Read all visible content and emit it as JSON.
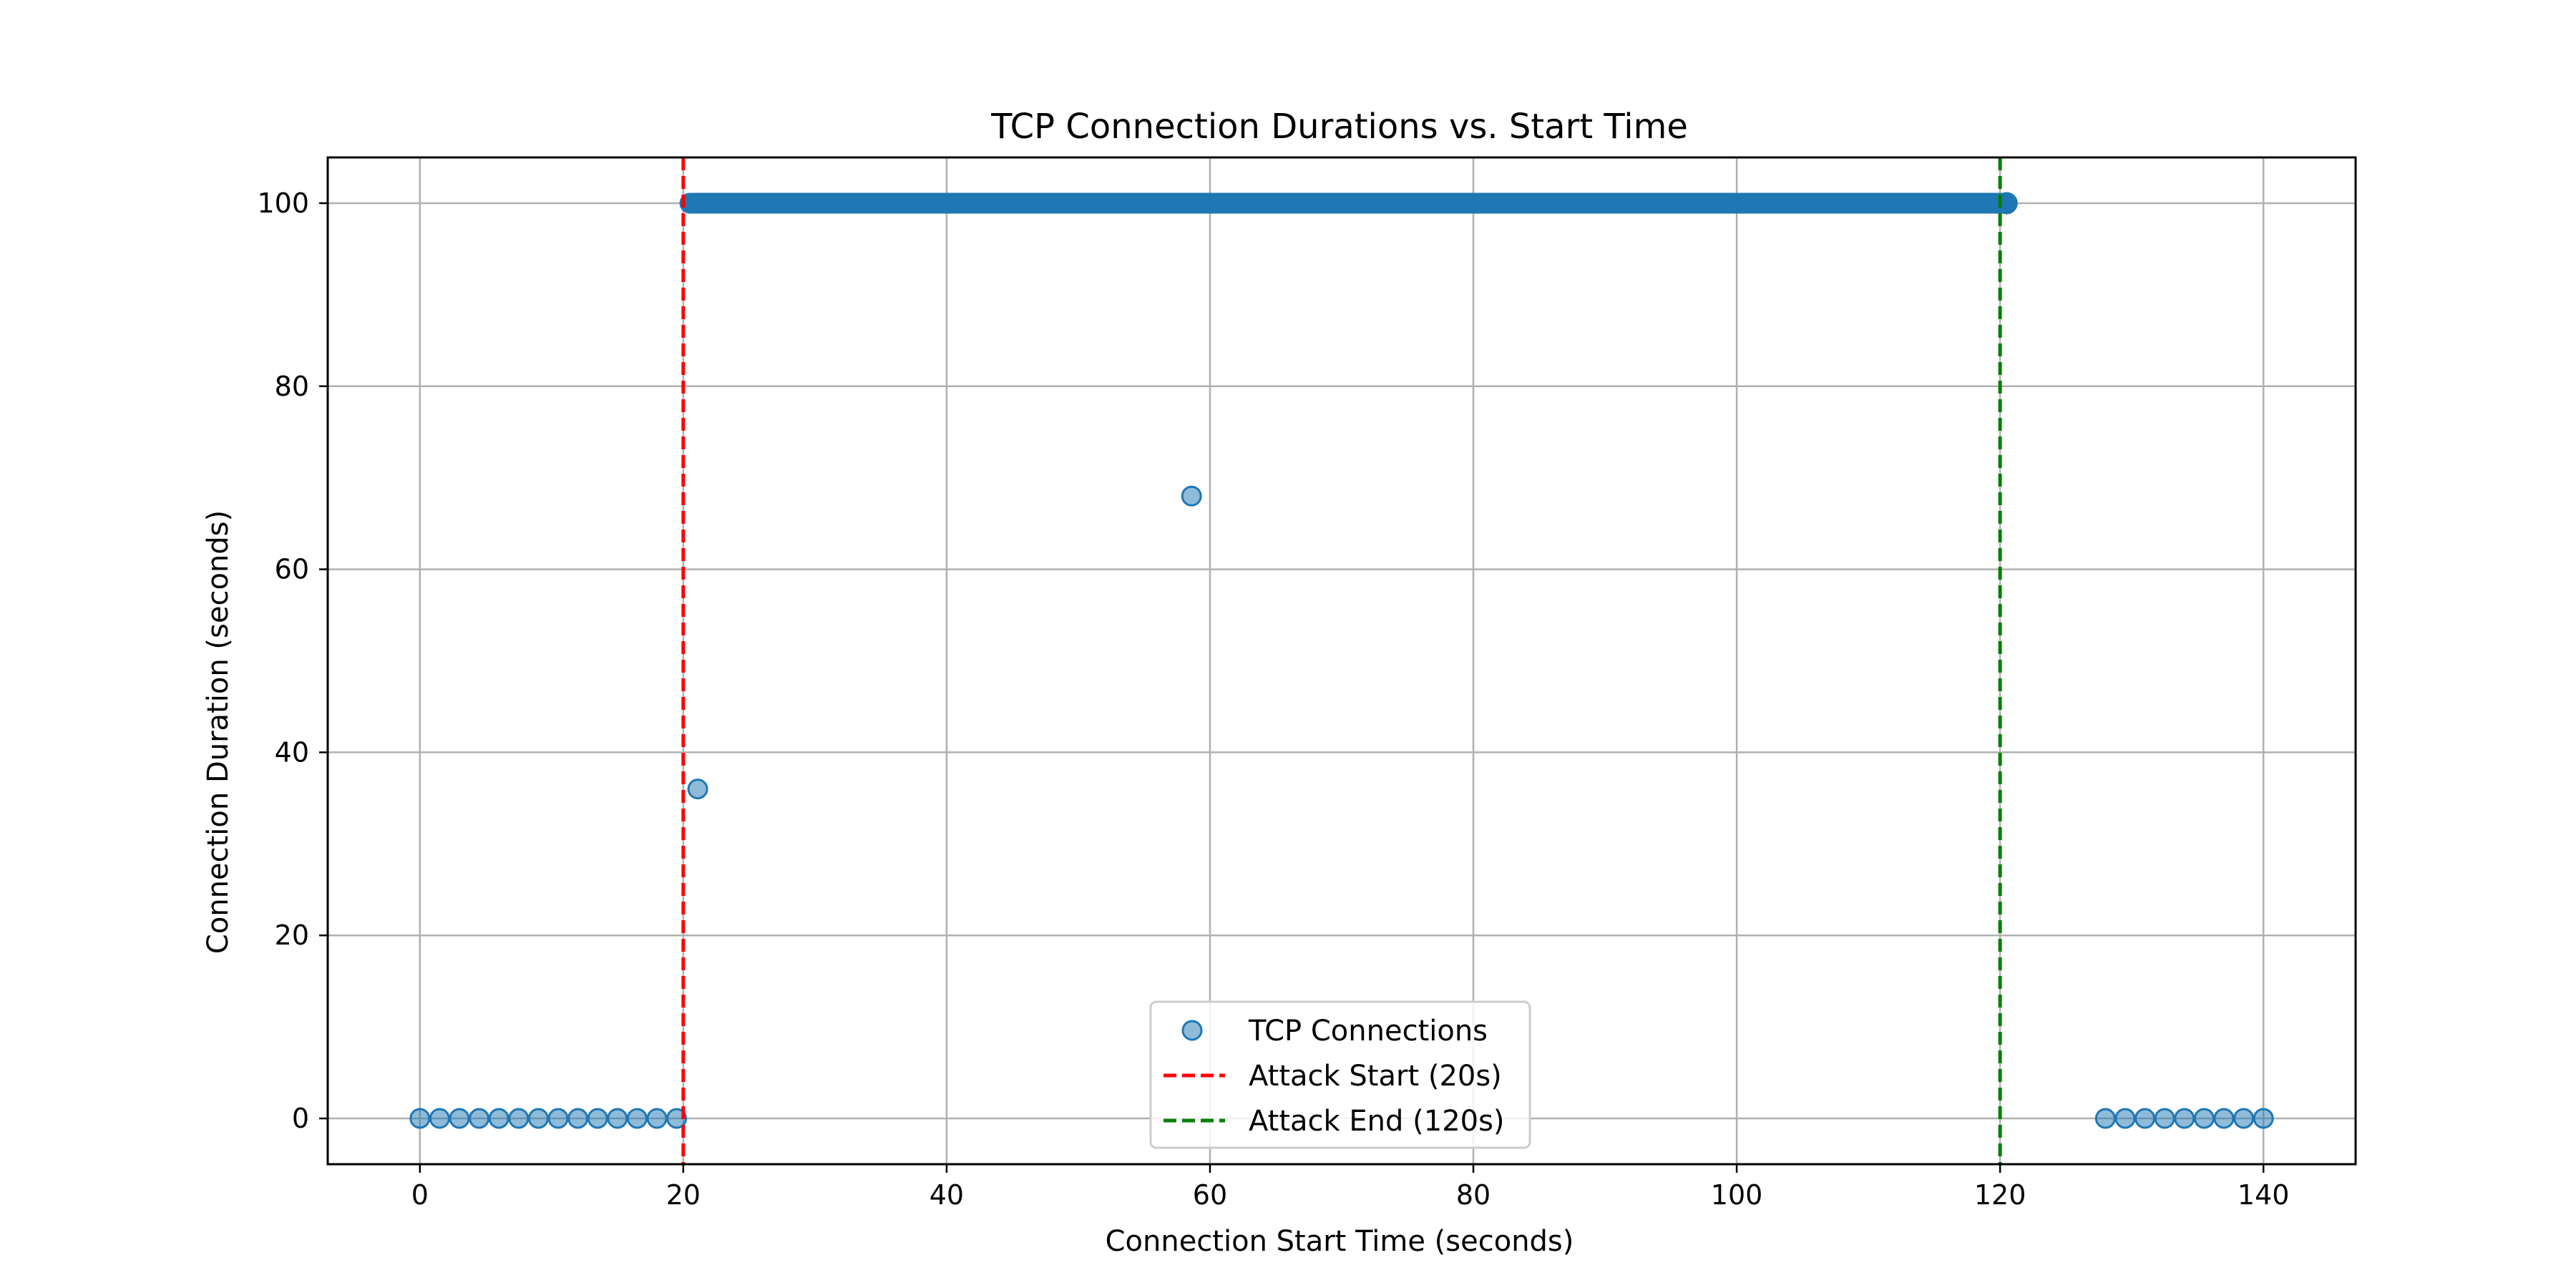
{
  "chart_data": {
    "type": "scatter",
    "title": "TCP Connection Durations vs. Start Time",
    "xlabel": "Connection Start Time (seconds)",
    "ylabel": "Connection Duration (seconds)",
    "xlim": [
      -7,
      147
    ],
    "ylim": [
      -5,
      105
    ],
    "xticks": [
      0,
      20,
      40,
      60,
      80,
      100,
      120,
      140
    ],
    "yticks": [
      0,
      20,
      40,
      60,
      80,
      100
    ],
    "grid": true,
    "legend_position": "bottom-center",
    "series": [
      {
        "name": "TCP Connections",
        "color": "#1f77b4",
        "points": [
          {
            "x": 0.0,
            "y": 0
          },
          {
            "x": 1.5,
            "y": 0
          },
          {
            "x": 3.0,
            "y": 0
          },
          {
            "x": 4.5,
            "y": 0
          },
          {
            "x": 6.0,
            "y": 0
          },
          {
            "x": 7.5,
            "y": 0
          },
          {
            "x": 9.0,
            "y": 0
          },
          {
            "x": 10.5,
            "y": 0
          },
          {
            "x": 12.0,
            "y": 0
          },
          {
            "x": 13.5,
            "y": 0
          },
          {
            "x": 15.0,
            "y": 0
          },
          {
            "x": 16.5,
            "y": 0
          },
          {
            "x": 18.0,
            "y": 0
          },
          {
            "x": 19.5,
            "y": 0
          },
          {
            "x": 21.1,
            "y": 36
          },
          {
            "x": 58.6,
            "y": 68
          },
          {
            "x": 128.0,
            "y": 0
          },
          {
            "x": 129.5,
            "y": 0
          },
          {
            "x": 131.0,
            "y": 0
          },
          {
            "x": 132.5,
            "y": 0
          },
          {
            "x": 134.0,
            "y": 0
          },
          {
            "x": 135.5,
            "y": 0
          },
          {
            "x": 137.0,
            "y": 0
          },
          {
            "x": 138.5,
            "y": 0
          },
          {
            "x": 140.0,
            "y": 0
          }
        ],
        "dense_band": {
          "x_start": 20.5,
          "x_end": 120.5,
          "y": 100
        }
      }
    ],
    "vlines": [
      {
        "name": "Attack Start (20s)",
        "x": 20,
        "color": "#ff0000",
        "style": "dashed"
      },
      {
        "name": "Attack End (120s)",
        "x": 120,
        "color": "#008000",
        "style": "dashed"
      }
    ]
  }
}
